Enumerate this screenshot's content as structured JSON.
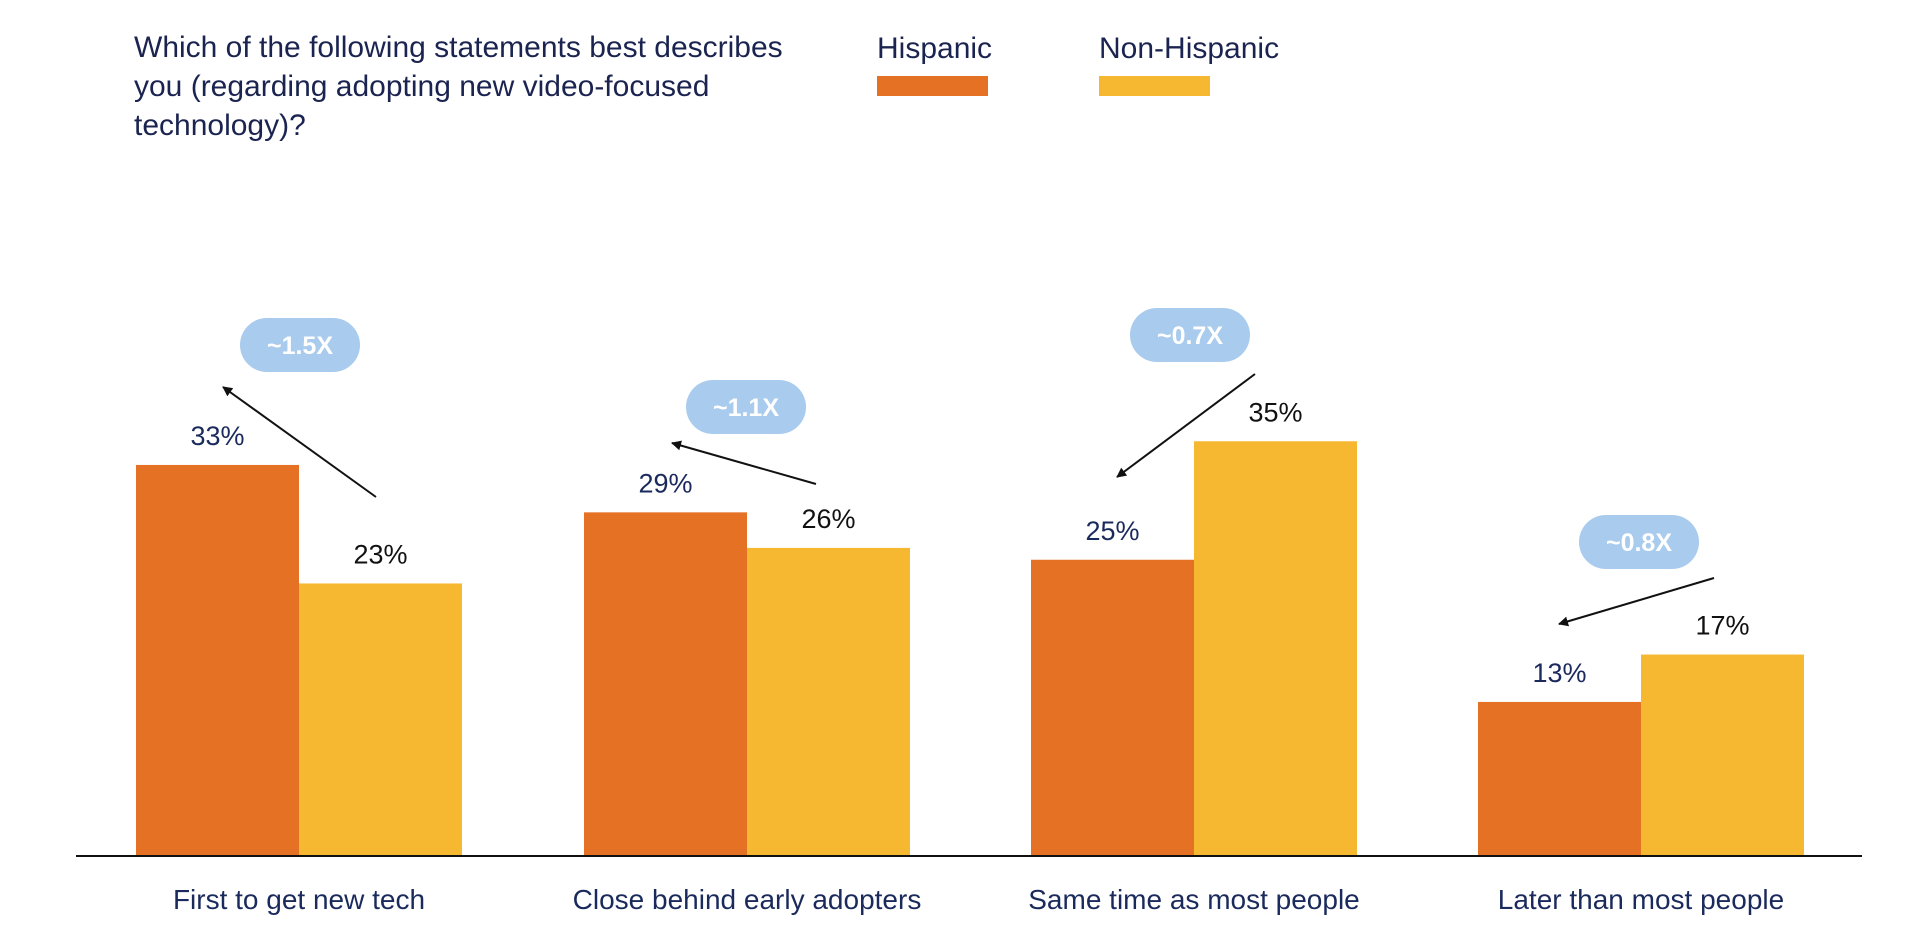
{
  "question": "Which of the following statements best describes you (regarding adopting new video-focused technology)?",
  "colors": {
    "hispanic": "#e57125",
    "non_hispanic": "#f6b731",
    "ratio_badge": "#a9cbed",
    "text": "#1b2450",
    "axis": "#111111"
  },
  "chart_data": {
    "type": "bar",
    "title": "Which of the following statements best describes you (regarding adopting new video-focused technology)?",
    "categories": [
      "First to get new tech",
      "Close behind early adopters",
      "Same time as most people",
      "Later than most people"
    ],
    "series": [
      {
        "name": "Hispanic",
        "values": [
          33,
          29,
          25,
          13
        ],
        "labels": [
          "33%",
          "29%",
          "25%",
          "13%"
        ]
      },
      {
        "name": "Non-Hispanic",
        "values": [
          23,
          26,
          35,
          17
        ],
        "labels": [
          "23%",
          "26%",
          "35%",
          "17%"
        ]
      }
    ],
    "ratio_annotations": [
      "~1.5X",
      "~1.1X",
      "~0.7X",
      "~0.8X"
    ],
    "legend_position": "top",
    "xlabel": "",
    "ylabel": "",
    "ylim": [
      0,
      35
    ],
    "grid": false,
    "value_unit": "%"
  }
}
